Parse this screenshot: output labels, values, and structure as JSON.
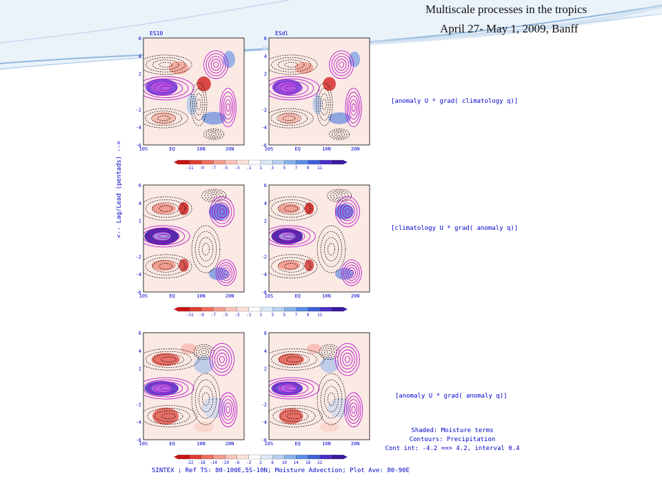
{
  "slide": {
    "title_line1": "Multiscale processes in the tropics",
    "title_line2": "April 27- May 1, 2009, Banff",
    "colors": {
      "frame_blue": "#8fb8dd",
      "label_blue": "#0000cc",
      "contour_neg": "#000000",
      "contour_pos": "#b000c8"
    }
  },
  "chart_data": {
    "type": "heatmap",
    "columns": [
      "ES10",
      "ESdl"
    ],
    "rows": [
      {
        "label": "[anomaly U * grad( climatology q)]"
      },
      {
        "label": "[climatology U * grad( anomaly q)]"
      },
      {
        "label": "[anomaly U * grad( anomaly q)]"
      }
    ],
    "ylabel": "<-- Lag/Lead (pentads) -->",
    "x_ticks": [
      "10S",
      "EQ",
      "10N",
      "20N"
    ],
    "x_range": [
      -10,
      25
    ],
    "y_ticks": [
      "6",
      "4",
      "2",
      "-2",
      "-4",
      "-6"
    ],
    "y_range": [
      -6,
      6
    ],
    "colorbars": [
      [
        "-11",
        "-9",
        "-7",
        "-5",
        "-3",
        "-1",
        "1",
        "3",
        "5",
        "7",
        "9",
        "11"
      ],
      [
        "-11",
        "-9",
        "-7",
        "-5",
        "-3",
        "-1",
        "1",
        "3",
        "5",
        "7",
        "9",
        "11"
      ],
      [
        "-22",
        "-18",
        "-14",
        "-10",
        "-6",
        "-2",
        "2",
        "6",
        "10",
        "14",
        "18",
        "22"
      ]
    ],
    "legend_lines": [
      "Shaded: Moisture terms",
      "Contours: Precipitation",
      "Cont int: -4.2 ==> 4.2, interval 0.4"
    ],
    "footer": "SINTEX ; Ref TS: 80-100E,5S-10N; Moisture Advection; Plot Ave: 80-90E",
    "shading_colors": [
      "#c81414",
      "#e03c32",
      "#ee6e5e",
      "#f59c8e",
      "#f9c4b8",
      "#fde2da",
      "#ffffff",
      "#dbe8f8",
      "#b6d0f2",
      "#86b2ec",
      "#5a8ce6",
      "#3f5ed8",
      "#4a2ec8",
      "#3a1aa0"
    ]
  }
}
